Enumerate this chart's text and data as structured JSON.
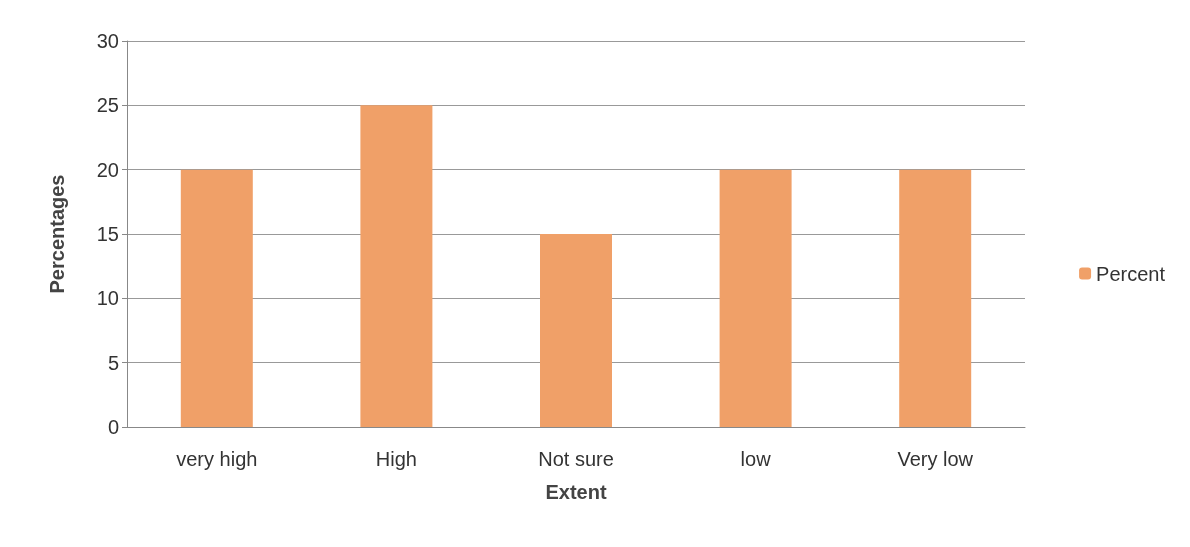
{
  "chart_data": {
    "type": "bar",
    "xlabel": "Extent",
    "ylabel": "Percentages",
    "categories": [
      "very high",
      "High",
      "Not sure",
      "low",
      "Very low"
    ],
    "series": [
      {
        "name": "Percent",
        "color": "#f0a068",
        "values": [
          20,
          25,
          15,
          20,
          20
        ]
      }
    ],
    "ylim": [
      0,
      30
    ],
    "yticks": [
      0,
      5,
      10,
      15,
      20,
      25,
      30
    ],
    "grid": "y",
    "legend": "right"
  }
}
